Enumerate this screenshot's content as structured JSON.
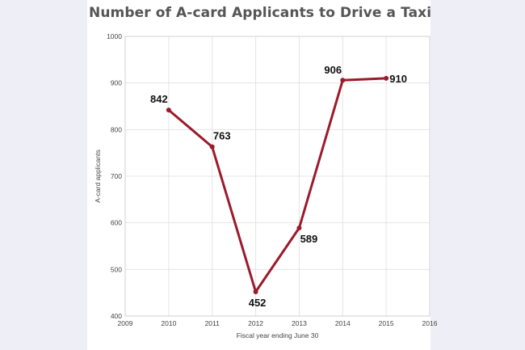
{
  "chart_data": {
    "type": "line",
    "title": "Number of A-card Applicants to Drive a Taxi",
    "xlabel": "Fiscal year ending June 30",
    "ylabel": "A-card applicants",
    "x_ticks": [
      2009,
      2010,
      2011,
      2012,
      2013,
      2014,
      2015,
      2016
    ],
    "y_ticks": [
      400,
      500,
      600,
      700,
      800,
      900,
      1000
    ],
    "xlim": [
      2009,
      2016
    ],
    "ylim": [
      400,
      1000
    ],
    "grid": true,
    "legend": "none",
    "series": [
      {
        "x": [
          2010,
          2011,
          2012,
          2013,
          2014,
          2015
        ],
        "values": [
          842,
          763,
          452,
          589,
          906,
          910
        ],
        "labels": [
          "842",
          "763",
          "452",
          "589",
          "906",
          "910"
        ],
        "color": "#9b1b2b"
      }
    ]
  }
}
